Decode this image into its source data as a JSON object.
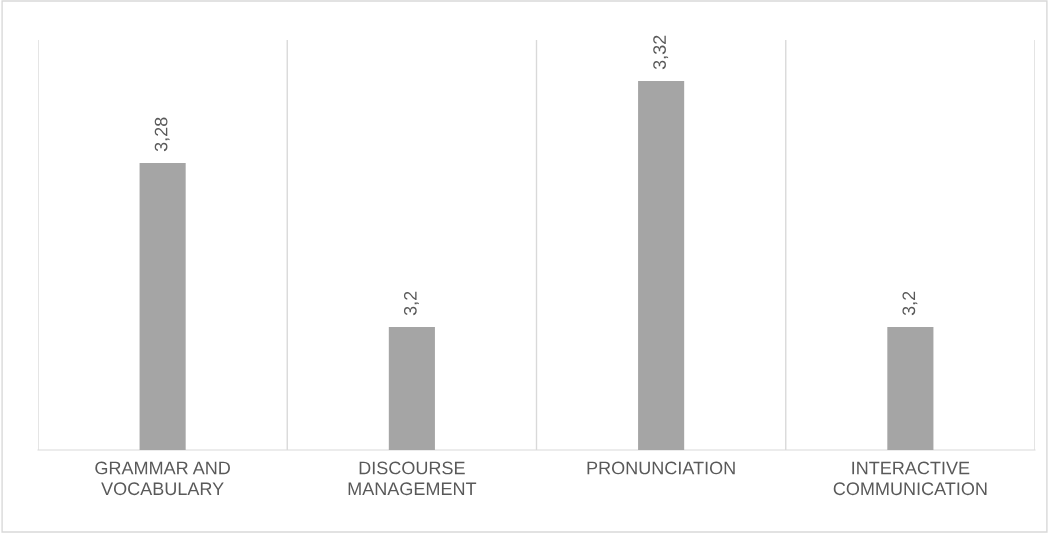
{
  "chart_data": {
    "type": "bar",
    "categories": [
      "GRAMMAR AND\nVOCABULARY",
      "DISCOURSE\nMANAGEMENT",
      "PRONUNCIATION",
      "INTERACTIVE\nCOMMUNICATION"
    ],
    "values": [
      3.28,
      3.2,
      3.32,
      3.2
    ],
    "value_labels": [
      "3,28",
      "3,2",
      "3,32",
      "3,2"
    ],
    "color": "#a5a5a5",
    "ylim": [
      3.14,
      3.34
    ],
    "grid": "x",
    "tick_labels": "x"
  }
}
